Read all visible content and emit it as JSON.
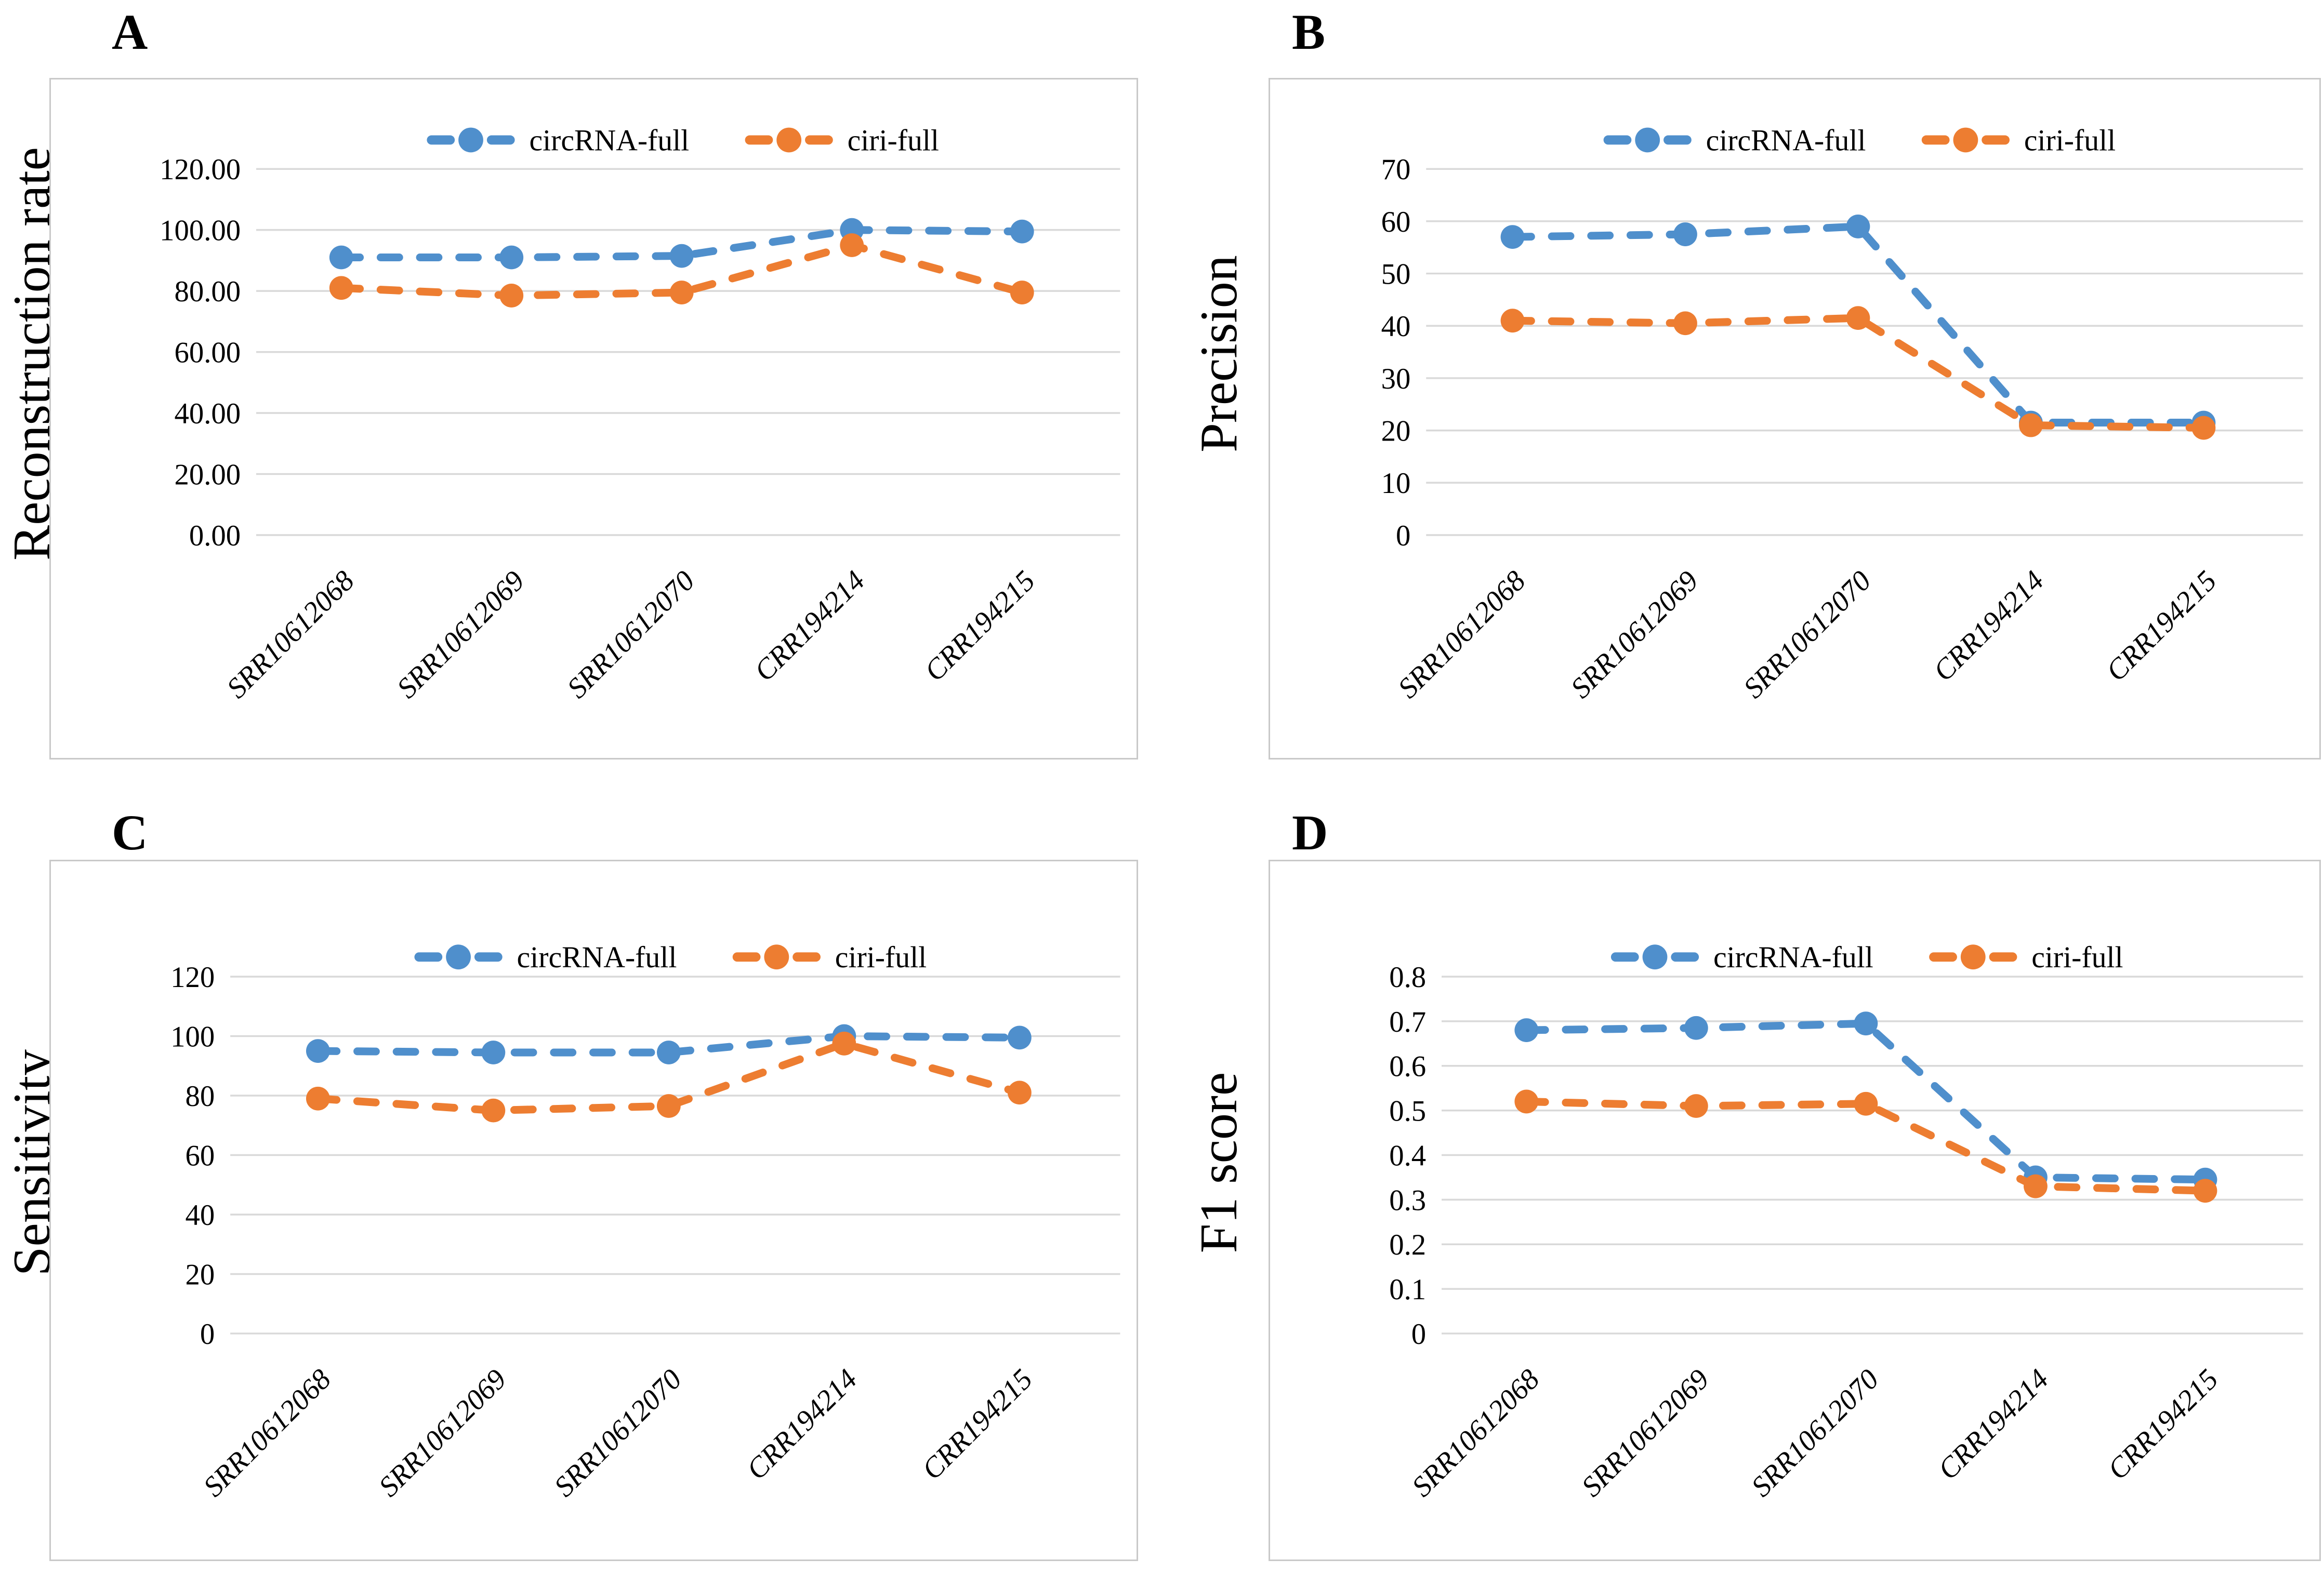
{
  "figure": {
    "series_names": [
      "circRNA-full",
      "ciri-full"
    ],
    "categories": [
      "SRR10612068",
      "SRR10612069",
      "SRR10612070",
      "CRR194214",
      "CRR194215"
    ],
    "colors": {
      "circrna_full": "#4f8fcc",
      "ciri_full": "#ed7d31",
      "gridline": "#d9d9d9",
      "box_border": "#c9c9c9",
      "text": "#000000"
    }
  },
  "chart_data": [
    {
      "panel": "A",
      "type": "line",
      "title": "",
      "xlabel": "",
      "ylabel": "Reconstruction rate",
      "ymin": 0,
      "ymax": 120,
      "ytick_labels": [
        "120.00",
        "100.00",
        "80.00",
        "60.00",
        "40.00",
        "20.00",
        "0.00"
      ],
      "categories": [
        "SRR10612068",
        "SRR10612069",
        "SRR10612070",
        "CRR194214",
        "CRR194215"
      ],
      "grid": true,
      "legend_position": "top-center",
      "line_style": "dashed-with-round-markers",
      "series": [
        {
          "name": "circRNA-full",
          "color": "#4f8fcc",
          "values": [
            91,
            91,
            91.5,
            100,
            99.5
          ]
        },
        {
          "name": "ciri-full",
          "color": "#ed7d31",
          "values": [
            81,
            78.5,
            79.5,
            95,
            79.5
          ]
        }
      ]
    },
    {
      "panel": "B",
      "type": "line",
      "title": "",
      "xlabel": "",
      "ylabel": "Precision",
      "ymin": 0,
      "ymax": 70,
      "ytick_labels": [
        "70",
        "60",
        "50",
        "40",
        "30",
        "20",
        "10",
        "0"
      ],
      "categories": [
        "SRR10612068",
        "SRR10612069",
        "SRR10612070",
        "CRR194214",
        "CRR194215"
      ],
      "grid": true,
      "legend_position": "top-center",
      "line_style": "dashed-with-round-markers",
      "series": [
        {
          "name": "circRNA-full",
          "color": "#4f8fcc",
          "values": [
            57,
            57.5,
            59,
            21.5,
            21.5
          ]
        },
        {
          "name": "ciri-full",
          "color": "#ed7d31",
          "values": [
            41,
            40.5,
            41.5,
            21,
            20.5
          ]
        }
      ]
    },
    {
      "panel": "C",
      "type": "line",
      "title": "",
      "xlabel": "",
      "ylabel": "Sensitivity",
      "ymin": 0,
      "ymax": 120,
      "ytick_labels": [
        "120",
        "100",
        "80",
        "60",
        "40",
        "20",
        "0"
      ],
      "categories": [
        "SRR10612068",
        "SRR10612069",
        "SRR10612070",
        "CRR194214",
        "CRR194215"
      ],
      "grid": true,
      "legend_position": "top-center",
      "line_style": "dashed-with-round-markers",
      "series": [
        {
          "name": "circRNA-full",
          "color": "#4f8fcc",
          "values": [
            95,
            94.5,
            94.5,
            100,
            99.5
          ]
        },
        {
          "name": "ciri-full",
          "color": "#ed7d31",
          "values": [
            79,
            75,
            76.5,
            97.5,
            81
          ]
        }
      ]
    },
    {
      "panel": "D",
      "type": "line",
      "title": "",
      "xlabel": "",
      "ylabel": "F1 score",
      "ymin": 0,
      "ymax": 0.8,
      "ytick_labels": [
        "0.8",
        "0.7",
        "0.6",
        "0.5",
        "0.4",
        "0.3",
        "0.2",
        "0.1",
        "0"
      ],
      "categories": [
        "SRR10612068",
        "SRR10612069",
        "SRR10612070",
        "CRR194214",
        "CRR194215"
      ],
      "grid": true,
      "legend_position": "top-center",
      "line_style": "dashed-with-round-markers",
      "series": [
        {
          "name": "circRNA-full",
          "color": "#4f8fcc",
          "values": [
            0.68,
            0.685,
            0.695,
            0.35,
            0.345
          ]
        },
        {
          "name": "ciri-full",
          "color": "#ed7d31",
          "values": [
            0.52,
            0.51,
            0.515,
            0.33,
            0.32
          ]
        }
      ]
    }
  ]
}
